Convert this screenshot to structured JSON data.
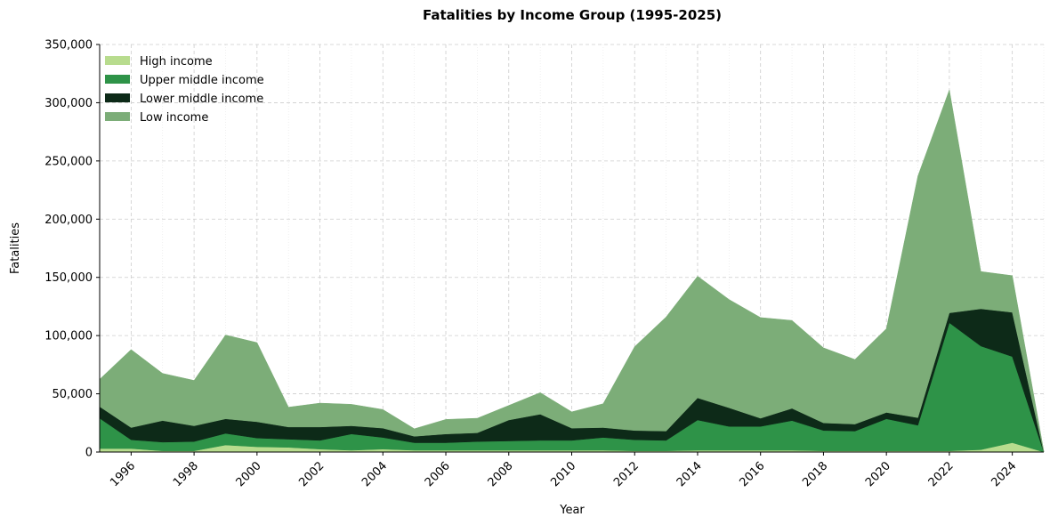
{
  "chart_data": {
    "type": "area",
    "stacked": true,
    "title": "Fatalities by Income Group (1995-2025)",
    "xlabel": "Year",
    "ylabel": "Fatalities",
    "xlim": [
      1995,
      2025
    ],
    "ylim": [
      0,
      350000
    ],
    "x_ticks": [
      1996,
      1998,
      2000,
      2002,
      2004,
      2006,
      2008,
      2010,
      2012,
      2014,
      2016,
      2018,
      2020,
      2022,
      2024
    ],
    "y_ticks": [
      0,
      50000,
      100000,
      150000,
      200000,
      250000,
      300000,
      350000
    ],
    "y_tick_labels": [
      "0",
      "50,000",
      "100,000",
      "150,000",
      "200,000",
      "250,000",
      "300,000",
      "350,000"
    ],
    "grid": true,
    "legend_position": "top-left",
    "x": [
      1995,
      1996,
      1997,
      1998,
      1999,
      2000,
      2001,
      2002,
      2003,
      2004,
      2005,
      2006,
      2007,
      2008,
      2009,
      2010,
      2011,
      2012,
      2013,
      2014,
      2015,
      2016,
      2017,
      2018,
      2019,
      2020,
      2021,
      2022,
      2023,
      2024,
      2025
    ],
    "series": [
      {
        "name": "High income",
        "color": "#b8dc8e",
        "values": [
          3000,
          3000,
          1000,
          1000,
          6000,
          4500,
          4000,
          2500,
          1500,
          2500,
          1500,
          1500,
          1500,
          1500,
          1500,
          1500,
          1500,
          1000,
          1000,
          1500,
          1500,
          1500,
          1500,
          1000,
          1000,
          1000,
          1000,
          1000,
          2000,
          8000,
          0
        ]
      },
      {
        "name": "Upper middle income",
        "color": "#2e9348",
        "values": [
          26000,
          7500,
          7500,
          8000,
          10000,
          7500,
          7000,
          7500,
          14000,
          10000,
          6500,
          6500,
          7500,
          8000,
          8500,
          8500,
          11000,
          9500,
          9000,
          26000,
          20500,
          20500,
          25500,
          17500,
          17000,
          27500,
          22000,
          110000,
          89000,
          74000,
          0
        ]
      },
      {
        "name": "Lower middle income",
        "color": "#0d2a18",
        "values": [
          10000,
          10500,
          18500,
          13500,
          12500,
          14000,
          10500,
          11500,
          7000,
          8000,
          5500,
          7500,
          7500,
          18000,
          22500,
          10500,
          8500,
          8000,
          8000,
          19000,
          16000,
          7000,
          10500,
          6500,
          6000,
          5500,
          6500,
          8500,
          32000,
          38000,
          0
        ]
      },
      {
        "name": "Low income",
        "color": "#7cad78",
        "values": [
          23500,
          67000,
          40500,
          39000,
          72000,
          68000,
          17000,
          20500,
          18500,
          16000,
          6500,
          12500,
          12500,
          12500,
          18500,
          14000,
          20500,
          72000,
          98000,
          104500,
          93000,
          86500,
          75500,
          64500,
          55500,
          72000,
          207500,
          191500,
          32000,
          31500,
          1000
        ]
      }
    ]
  }
}
